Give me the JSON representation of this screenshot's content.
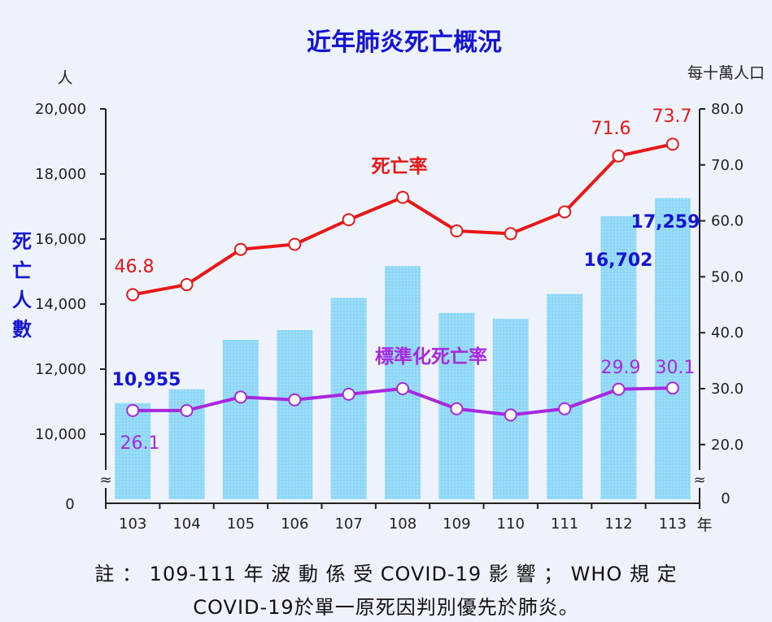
{
  "chart_data": {
    "type": "bar+line",
    "title": "近年肺炎死亡概況",
    "categories": [
      "103",
      "104",
      "105",
      "106",
      "107",
      "108",
      "109",
      "110",
      "111",
      "112",
      "113"
    ],
    "x_unit": "年",
    "left_axis": {
      "unit": "人",
      "label": [
        "死",
        "亡",
        "人",
        "數"
      ],
      "ylim": [
        10000,
        20000
      ],
      "ticks": [
        "20,000",
        "18,000",
        "16,000",
        "14,000",
        "12,000",
        "10,000"
      ],
      "tick_values": [
        20000,
        18000,
        16000,
        14000,
        12000,
        10000
      ],
      "zero_label": "0",
      "break_symbol": "≈"
    },
    "right_axis": {
      "unit": "每十萬人口",
      "ylim": [
        20,
        80
      ],
      "ticks": [
        "80.0",
        "70.0",
        "60.0",
        "50.0",
        "40.0",
        "30.0",
        "20.0"
      ],
      "tick_values": [
        80,
        70,
        60,
        50,
        40,
        30,
        20
      ],
      "zero_label": "0",
      "break_symbol": "≈"
    },
    "series": [
      {
        "name": "死亡人數",
        "kind": "bar",
        "axis": "left",
        "color": "#8fd7f7",
        "values": [
          10955,
          11380,
          12900,
          13200,
          14190,
          15170,
          13730,
          13550,
          14310,
          16702,
          17259
        ],
        "labels": {
          "0": "10,955",
          "9": "16,702",
          "10": "17,259"
        }
      },
      {
        "name": "死亡率",
        "kind": "line",
        "axis": "right",
        "color": "#e81818",
        "values": [
          46.8,
          48.6,
          54.9,
          55.8,
          60.2,
          64.2,
          58.2,
          57.7,
          61.6,
          71.6,
          73.7
        ],
        "labels": {
          "0": "46.8",
          "9": "71.6",
          "10": "73.7"
        }
      },
      {
        "name": "標準化死亡率",
        "kind": "line",
        "axis": "right",
        "color": "#a828e0",
        "values": [
          26.1,
          26.1,
          28.5,
          28.0,
          29.0,
          30.0,
          26.4,
          25.3,
          26.4,
          29.9,
          30.1
        ],
        "labels": {
          "0": "26.1",
          "9": "29.9",
          "10": "30.1"
        }
      }
    ]
  },
  "notes": {
    "line1": "註 ： 109-111 年 波 動 係 受 COVID-19 影 響 ； WHO 規 定",
    "line2": "COVID-19於單一原死因判別優先於肺炎。"
  }
}
